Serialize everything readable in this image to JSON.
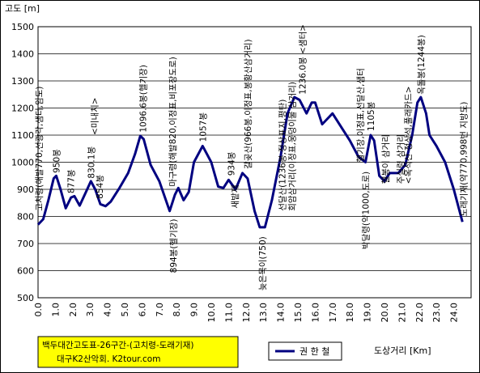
{
  "chart_data": {
    "type": "line",
    "ylabel": "고도 [m]",
    "xlabel": "도상거리 [Km]",
    "ylim": [
      500,
      1500
    ],
    "y_ticks": [
      500,
      600,
      700,
      800,
      900,
      1000,
      1100,
      1200,
      1300,
      1400,
      1500
    ],
    "xlim": [
      0.0,
      25.0
    ],
    "x_ticks": [
      "0.0",
      "1.0",
      "2.0",
      "3.0",
      "4.0",
      "5.0",
      "6.0",
      "7.0",
      "8.0",
      "9.0",
      "10.0",
      "11.0",
      "12.0",
      "13.0",
      "14.0",
      "15.0",
      "16.0",
      "17.0",
      "18.0",
      "19.0",
      "20.0",
      "21.0",
      "22.0",
      "23.0",
      "24.0"
    ],
    "grid": true,
    "legend_position": "bottom-center",
    "series": [
      {
        "name": "권 한 철",
        "color": "#000080",
        "points": [
          [
            0.0,
            770
          ],
          [
            0.3,
            790
          ],
          [
            0.6,
            860
          ],
          [
            0.9,
            940
          ],
          [
            1.05,
            950
          ],
          [
            1.3,
            900
          ],
          [
            1.6,
            830
          ],
          [
            1.9,
            870
          ],
          [
            2.1,
            875
          ],
          [
            2.4,
            840
          ],
          [
            2.8,
            895
          ],
          [
            3.05,
            930
          ],
          [
            3.3,
            900
          ],
          [
            3.6,
            845
          ],
          [
            3.9,
            838
          ],
          [
            4.2,
            855
          ],
          [
            4.7,
            905
          ],
          [
            5.2,
            960
          ],
          [
            5.6,
            1030
          ],
          [
            5.9,
            1097
          ],
          [
            6.1,
            1085
          ],
          [
            6.5,
            990
          ],
          [
            7.0,
            930
          ],
          [
            7.6,
            820
          ],
          [
            7.9,
            880
          ],
          [
            8.1,
            905
          ],
          [
            8.4,
            860
          ],
          [
            8.7,
            890
          ],
          [
            9.0,
            1000
          ],
          [
            9.5,
            1060
          ],
          [
            10.0,
            1000
          ],
          [
            10.4,
            910
          ],
          [
            10.7,
            905
          ],
          [
            11.0,
            935
          ],
          [
            11.4,
            900
          ],
          [
            11.8,
            960
          ],
          [
            12.1,
            940
          ],
          [
            12.5,
            820
          ],
          [
            12.8,
            760
          ],
          [
            13.1,
            760
          ],
          [
            13.5,
            860
          ],
          [
            14.0,
            1020
          ],
          [
            14.4,
            1180
          ],
          [
            14.8,
            1240
          ],
          [
            15.1,
            1230
          ],
          [
            15.5,
            1180
          ],
          [
            15.8,
            1220
          ],
          [
            16.0,
            1220
          ],
          [
            16.4,
            1140
          ],
          [
            16.7,
            1160
          ],
          [
            17.0,
            1180
          ],
          [
            17.5,
            1130
          ],
          [
            18.0,
            1080
          ],
          [
            18.5,
            1020
          ],
          [
            18.9,
            1000
          ],
          [
            19.2,
            1100
          ],
          [
            19.4,
            1080
          ],
          [
            19.7,
            950
          ],
          [
            20.0,
            930
          ],
          [
            20.3,
            960
          ],
          [
            20.8,
            960
          ],
          [
            21.2,
            990
          ],
          [
            21.6,
            1100
          ],
          [
            21.9,
            1220
          ],
          [
            22.1,
            1240
          ],
          [
            22.4,
            1180
          ],
          [
            22.6,
            1100
          ],
          [
            23.0,
            1060
          ],
          [
            23.5,
            1000
          ],
          [
            24.0,
            900
          ],
          [
            24.5,
            780
          ]
        ]
      }
    ],
    "annotations": [
      {
        "x": 0.05,
        "y": 820,
        "text": "고치령(해발770,선광각,샘터,임도)"
      },
      {
        "x": 1.05,
        "y": 960,
        "text": "950봉"
      },
      {
        "x": 1.9,
        "y": 885,
        "text": "877봉"
      },
      {
        "x": 3.05,
        "y": 940,
        "text": "830.1봉"
      },
      {
        "x": 3.55,
        "y": 865,
        "text": "854봉"
      },
      {
        "x": 3.25,
        "y": 1100,
        "text": "<미내치>"
      },
      {
        "x": 6.05,
        "y": 1110,
        "text": "1096.6봉(헬기장)"
      },
      {
        "x": 7.75,
        "y": 910,
        "text": "마구령(해발820,이정표,비포장도로)"
      },
      {
        "x": 7.8,
        "y": 815,
        "text": "894봉(헬기장)",
        "side": "below"
      },
      {
        "x": 9.5,
        "y": 1075,
        "text": "1057봉"
      },
      {
        "x": 11.15,
        "y": 950,
        "text": "934봉"
      },
      {
        "x": 11.35,
        "y": 830,
        "text": "새밭재"
      },
      {
        "x": 12.1,
        "y": 975,
        "text": "갈곶산(966봉,이정표,봉황산삼거리)"
      },
      {
        "x": 12.95,
        "y": 750,
        "text": "늦은목이(750)",
        "side": "below"
      },
      {
        "x": 14.1,
        "y": 820,
        "text": "선달산(1236봉,정상표지,평탄)"
      },
      {
        "x": 14.65,
        "y": 820,
        "text": "회암삼거리(이정표,웅덩이물 삼거리)"
      },
      {
        "x": 15.25,
        "y": 1250,
        "text": "1236.0봉 <샘터>"
      },
      {
        "x": 18.6,
        "y": 1000,
        "text": "헬기장,이정표,선달산,샘터",
        "side": "above"
      },
      {
        "x": 19.2,
        "y": 1115,
        "text": "1105봉"
      },
      {
        "x": 18.9,
        "y": 990,
        "text": "박달령(약1000,도로)",
        "side": "below"
      },
      {
        "x": 20.05,
        "y": 920,
        "text": "헬봉이 삼거리"
      },
      {
        "x": 20.9,
        "y": 920,
        "text": "주실령 삼거리"
      },
      {
        "x": 21.35,
        "y": 920,
        "text": "<옥석산 정상석,풀래카드>"
      },
      {
        "x": 22.1,
        "y": 1250,
        "text": "옥돌봉(1244봉)"
      },
      {
        "x": 24.55,
        "y": 800,
        "text": "도래기재(약770,998번 지방도)"
      }
    ],
    "title_box": {
      "line1": "백두대간고도표-26구간-(고치령-도래기재)",
      "line2": "대구K2산악회. K2tour.com",
      "color": "#ffff00"
    }
  }
}
